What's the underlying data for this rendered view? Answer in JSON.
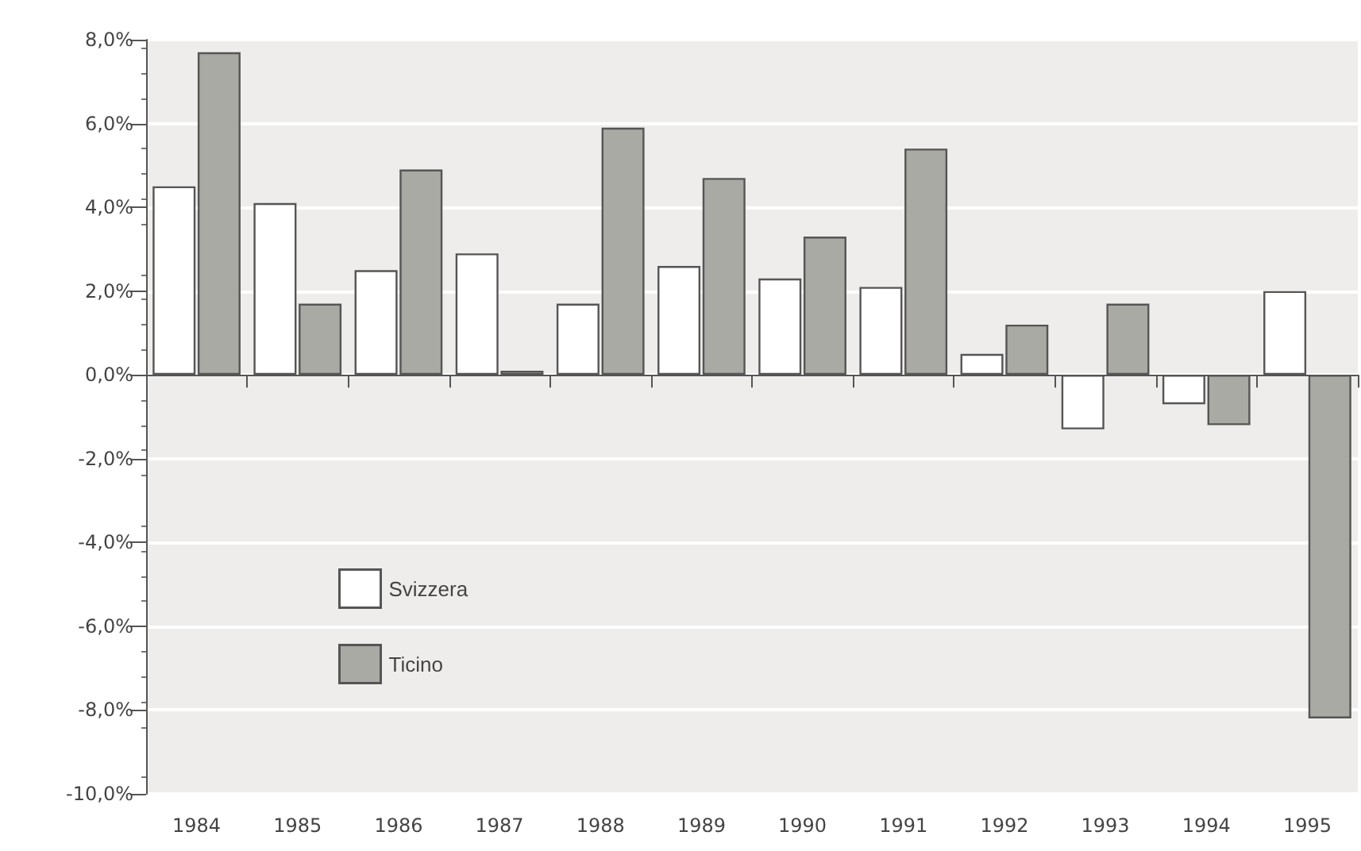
{
  "chart_data": {
    "type": "bar",
    "categories": [
      "1984",
      "1985",
      "1986",
      "1987",
      "1988",
      "1989",
      "1990",
      "1991",
      "1992",
      "1993",
      "1994",
      "1995"
    ],
    "series": [
      {
        "name": "Svizzera",
        "color": "#ffffff",
        "values": [
          4.5,
          4.1,
          2.5,
          2.9,
          1.7,
          2.6,
          2.3,
          2.1,
          0.5,
          -1.3,
          -0.7,
          2.0
        ]
      },
      {
        "name": "Ticino",
        "color": "#a9aaa4",
        "values": [
          7.7,
          1.7,
          4.9,
          0.1,
          5.9,
          4.7,
          3.3,
          5.4,
          1.2,
          1.7,
          -1.2,
          -8.2
        ]
      }
    ],
    "ylim": [
      -10,
      8
    ],
    "yticks": [
      {
        "value": -10,
        "label": "-10,0%"
      },
      {
        "value": -8,
        "label": "-8,0%"
      },
      {
        "value": -6,
        "label": "-6,0%"
      },
      {
        "value": -4,
        "label": "-4,0%"
      },
      {
        "value": -2,
        "label": "-2,0%"
      },
      {
        "value": 0,
        "label": "0,0%"
      },
      {
        "value": 2,
        "label": "2,0%"
      },
      {
        "value": 4,
        "label": "4,0%"
      },
      {
        "value": 6,
        "label": "6,0%"
      },
      {
        "value": 8,
        "label": "8,0%"
      }
    ],
    "grid": "y",
    "legend": "bottom left"
  }
}
